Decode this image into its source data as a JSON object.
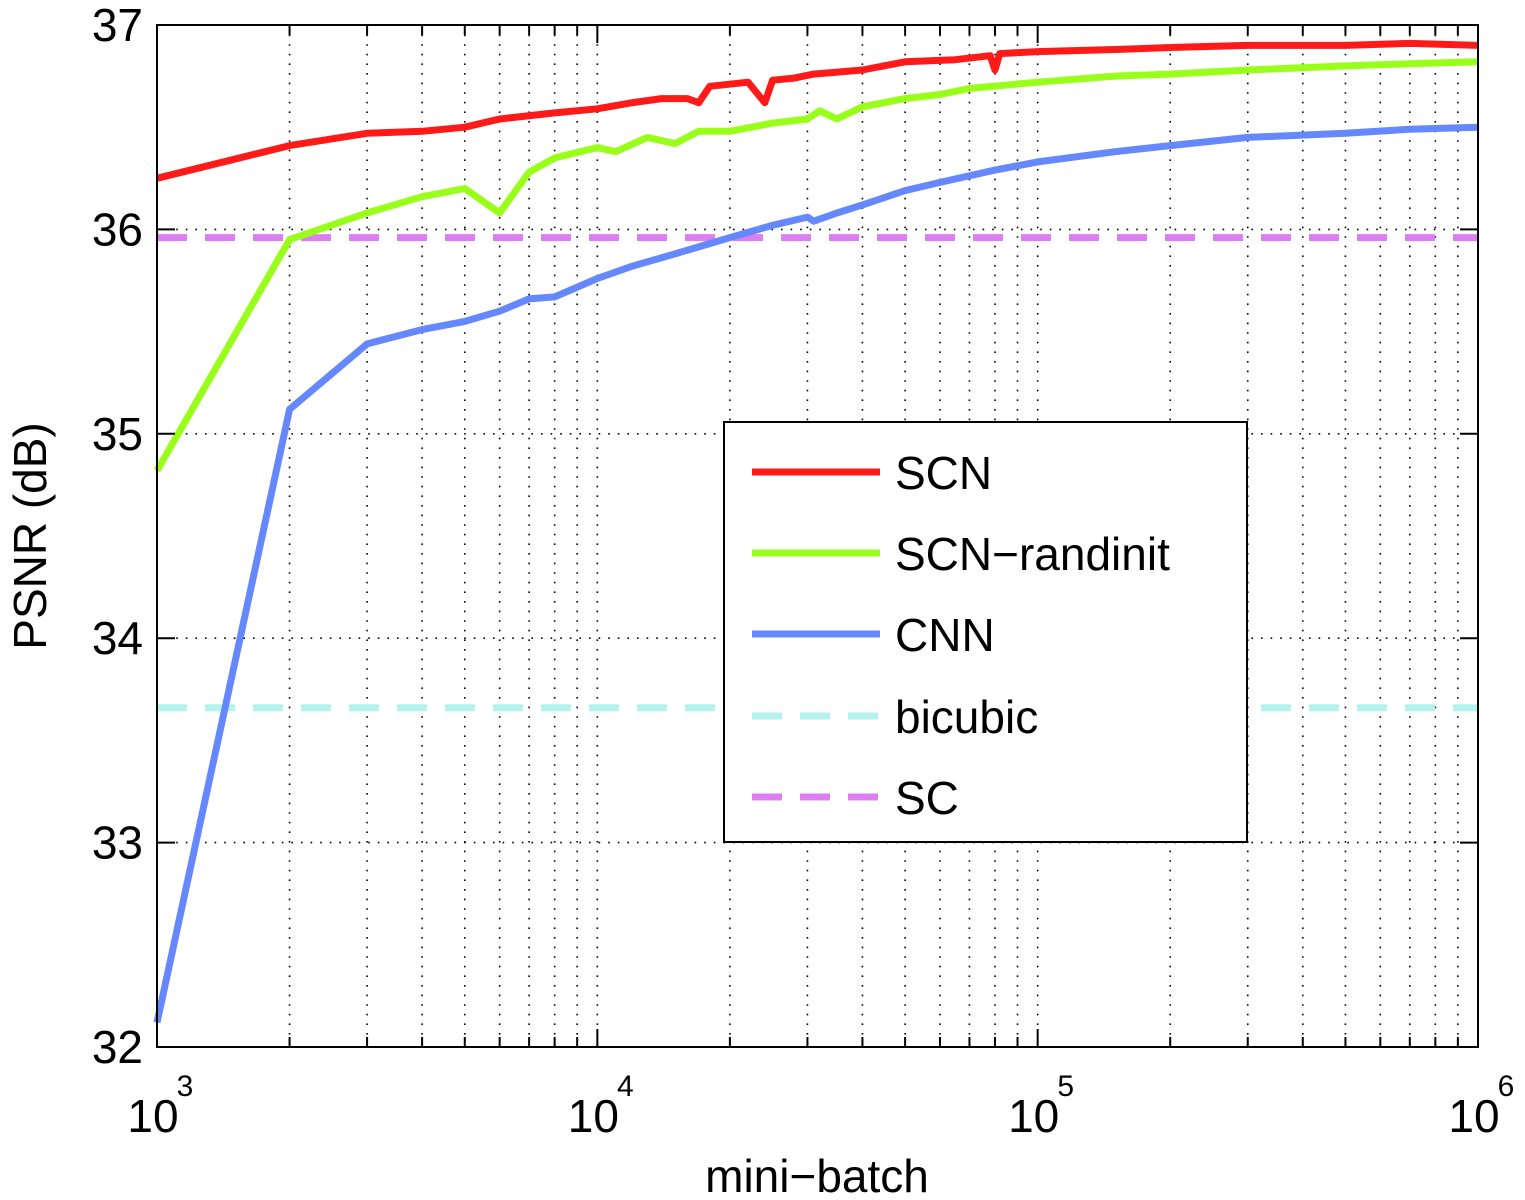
{
  "chart_data": {
    "type": "line",
    "title": "",
    "xlabel": "mini−batch",
    "ylabel": "PSNR (dB)",
    "xscale": "log",
    "xlim": [
      1000,
      1000000
    ],
    "ylim": [
      32,
      37
    ],
    "grid": true,
    "legend_position": "center-right",
    "x_ticks": [
      {
        "base": "10",
        "exp": "3",
        "value": 1000
      },
      {
        "base": "10",
        "exp": "4",
        "value": 10000
      },
      {
        "base": "10",
        "exp": "5",
        "value": 100000
      },
      {
        "base": "10",
        "exp": "6",
        "value": 1000000
      }
    ],
    "y_ticks": [
      {
        "label": "32",
        "value": 32
      },
      {
        "label": "33",
        "value": 33
      },
      {
        "label": "34",
        "value": 34
      },
      {
        "label": "35",
        "value": 35
      },
      {
        "label": "36",
        "value": 36
      },
      {
        "label": "37",
        "value": 37
      }
    ],
    "series": [
      {
        "name": "SCN",
        "color": "#ff1a1a",
        "style": "solid",
        "points": [
          [
            1000,
            36.25
          ],
          [
            2000,
            36.41
          ],
          [
            3000,
            36.47
          ],
          [
            4000,
            36.48
          ],
          [
            5000,
            36.5
          ],
          [
            6000,
            36.54
          ],
          [
            8000,
            36.57
          ],
          [
            10000,
            36.59
          ],
          [
            12000,
            36.62
          ],
          [
            14000,
            36.64
          ],
          [
            16000,
            36.64
          ],
          [
            17000,
            36.62
          ],
          [
            18000,
            36.7
          ],
          [
            22000,
            36.72
          ],
          [
            24000,
            36.62
          ],
          [
            25000,
            36.73
          ],
          [
            28000,
            36.74
          ],
          [
            31000,
            36.76
          ],
          [
            40000,
            36.78
          ],
          [
            50000,
            36.82
          ],
          [
            65000,
            36.83
          ],
          [
            78000,
            36.85
          ],
          [
            80000,
            36.78
          ],
          [
            82000,
            36.86
          ],
          [
            100000,
            36.87
          ],
          [
            150000,
            36.88
          ],
          [
            200000,
            36.89
          ],
          [
            300000,
            36.9
          ],
          [
            500000,
            36.9
          ],
          [
            700000,
            36.91
          ],
          [
            1000000,
            36.9
          ]
        ]
      },
      {
        "name": "SCN−randinit",
        "color": "#99ff1a",
        "style": "solid",
        "points": [
          [
            1000,
            34.82
          ],
          [
            2000,
            35.95
          ],
          [
            3000,
            36.08
          ],
          [
            4000,
            36.16
          ],
          [
            5000,
            36.2
          ],
          [
            6000,
            36.08
          ],
          [
            7000,
            36.28
          ],
          [
            8000,
            36.35
          ],
          [
            10000,
            36.4
          ],
          [
            11000,
            36.38
          ],
          [
            13000,
            36.45
          ],
          [
            15000,
            36.42
          ],
          [
            17000,
            36.48
          ],
          [
            20000,
            36.48
          ],
          [
            25000,
            36.52
          ],
          [
            30000,
            36.54
          ],
          [
            32000,
            36.58
          ],
          [
            35000,
            36.54
          ],
          [
            40000,
            36.6
          ],
          [
            50000,
            36.64
          ],
          [
            60000,
            36.66
          ],
          [
            70000,
            36.69
          ],
          [
            100000,
            36.72
          ],
          [
            150000,
            36.75
          ],
          [
            200000,
            36.76
          ],
          [
            300000,
            36.78
          ],
          [
            500000,
            36.8
          ],
          [
            700000,
            36.81
          ],
          [
            1000000,
            36.82
          ]
        ]
      },
      {
        "name": "CNN",
        "color": "#6688ff",
        "style": "solid",
        "points": [
          [
            1000,
            32.12
          ],
          [
            2000,
            35.12
          ],
          [
            3000,
            35.44
          ],
          [
            4000,
            35.51
          ],
          [
            5000,
            35.55
          ],
          [
            6000,
            35.6
          ],
          [
            7000,
            35.66
          ],
          [
            8000,
            35.67
          ],
          [
            10000,
            35.76
          ],
          [
            12000,
            35.82
          ],
          [
            15000,
            35.88
          ],
          [
            20000,
            35.96
          ],
          [
            25000,
            36.02
          ],
          [
            30000,
            36.06
          ],
          [
            31000,
            36.04
          ],
          [
            35000,
            36.08
          ],
          [
            40000,
            36.12
          ],
          [
            50000,
            36.19
          ],
          [
            60000,
            36.23
          ],
          [
            80000,
            36.29
          ],
          [
            100000,
            36.33
          ],
          [
            150000,
            36.38
          ],
          [
            200000,
            36.41
          ],
          [
            300000,
            36.45
          ],
          [
            500000,
            36.47
          ],
          [
            700000,
            36.49
          ],
          [
            1000000,
            36.5
          ]
        ]
      },
      {
        "name": "bicubic",
        "color": "#b3f5ee",
        "style": "dashed",
        "points": [
          [
            1000,
            33.66
          ],
          [
            1000000,
            33.66
          ]
        ]
      },
      {
        "name": "SC",
        "color": "#dd7ff0",
        "style": "dashed",
        "points": [
          [
            1000,
            35.96
          ],
          [
            1000000,
            35.96
          ]
        ]
      }
    ]
  }
}
